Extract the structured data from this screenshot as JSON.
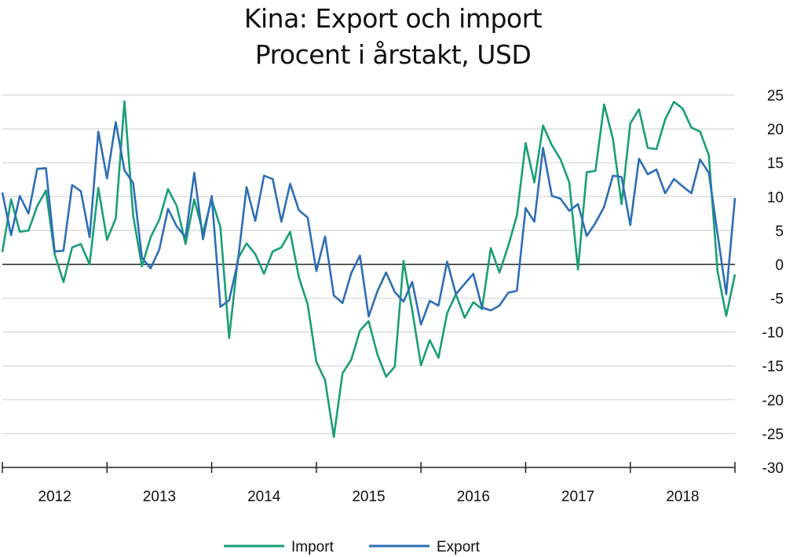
{
  "chart_data": {
    "type": "line",
    "title": "Kina: Export och import",
    "subtitle": "Procent i årstakt, USD",
    "xlabel": "",
    "ylabel": "",
    "ylim": [
      -30,
      25
    ],
    "yticks": [
      25,
      20,
      15,
      10,
      5,
      0,
      -5,
      -10,
      -15,
      -20,
      -25,
      -30
    ],
    "ytick_labels": [
      "25",
      "20",
      "15",
      "10",
      "5",
      "0",
      "-5",
      "-10",
      "-15",
      "-20",
      "-25",
      "-30"
    ],
    "x_range": [
      "2012-01",
      "2018-12"
    ],
    "year_labels": [
      "2012",
      "2013",
      "2014",
      "2015",
      "2016",
      "2017",
      "2018"
    ],
    "grid": true,
    "legend_position": "bottom",
    "series": [
      {
        "name": "Import",
        "color": "#1a9e77",
        "values": [
          1.8,
          9.6,
          4.8,
          5.0,
          8.6,
          10.9,
          1.5,
          -2.6,
          2.5,
          3.0,
          0.0,
          11.3,
          3.6,
          6.8,
          24.1,
          7.2,
          -0.3,
          4.0,
          6.6,
          11.1,
          8.6,
          3.0,
          9.6,
          4.7,
          9.6,
          5.5,
          -10.9,
          0.8,
          3.1,
          1.5,
          -1.4,
          1.9,
          2.5,
          4.8,
          -1.9,
          -5.9,
          -14.4,
          -17.1,
          -25.5,
          -16.1,
          -14.1,
          -9.8,
          -8.4,
          -13.3,
          -16.6,
          -15.1,
          0.5,
          -6.8,
          -14.9,
          -11.2,
          -13.8,
          -7.2,
          -4.4,
          -7.9,
          -5.6,
          -6.6,
          2.4,
          -1.2,
          2.7,
          7.2,
          17.9,
          12.1,
          20.5,
          17.6,
          15.5,
          12.1,
          -0.8,
          13.6,
          13.8,
          23.6,
          18.6,
          8.9,
          20.8,
          22.9,
          17.2,
          17.0,
          21.4,
          24.0,
          23.0,
          20.2,
          19.6,
          16.1,
          -1.0,
          -7.6,
          -1.5
        ],
        "points_note": ""
      },
      {
        "name": "Export",
        "color": "#2e6eb5",
        "values": [
          10.6,
          4.3,
          10.1,
          7.5,
          14.1,
          14.2,
          1.9,
          2.0,
          11.7,
          10.8,
          4.0,
          19.6,
          12.7,
          21.0,
          13.9,
          12.0,
          1.0,
          -0.6,
          2.2,
          8.2,
          5.6,
          4.0,
          13.5,
          3.7,
          10.1,
          -6.3,
          -5.3,
          0.4,
          11.4,
          6.4,
          13.1,
          12.6,
          6.3,
          11.9,
          8.0,
          6.9,
          -1.0,
          4.1,
          -4.6,
          -5.7,
          -1.3,
          1.3,
          -7.7,
          -4.0,
          -1.2,
          -4.1,
          -5.5,
          -2.6,
          -8.9,
          -5.4,
          -6.1,
          0.4,
          -4.4,
          -2.9,
          -1.4,
          -6.4,
          -6.8,
          -6.1,
          -4.2,
          -3.9,
          8.3,
          6.3,
          17.2,
          10.1,
          9.7,
          7.9,
          8.9,
          4.2,
          6.1,
          8.5,
          13.1,
          12.9,
          5.8,
          15.6,
          13.3,
          14.0,
          10.5,
          12.6,
          11.5,
          10.5,
          15.5,
          13.5,
          4.5,
          -4.4,
          9.8
        ]
      }
    ]
  },
  "legend": {
    "import_label": "Import",
    "export_label": "Export"
  }
}
